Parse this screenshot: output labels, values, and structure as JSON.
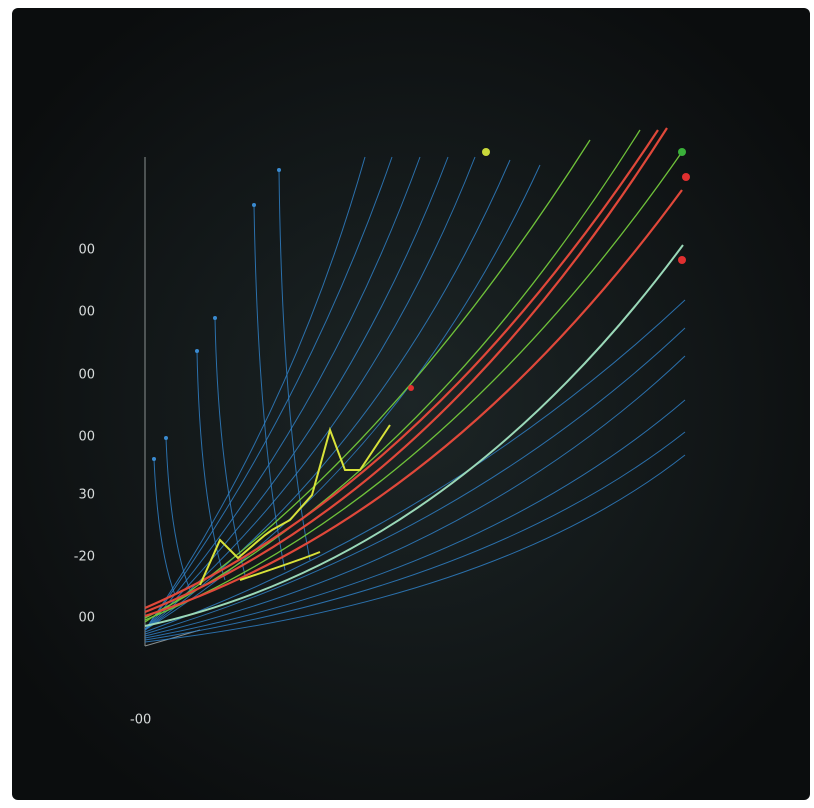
{
  "axis_labels": [
    "00",
    "00",
    "00",
    "00",
    "30",
    "-20",
    "00"
  ],
  "corner_label": "-00"
}
